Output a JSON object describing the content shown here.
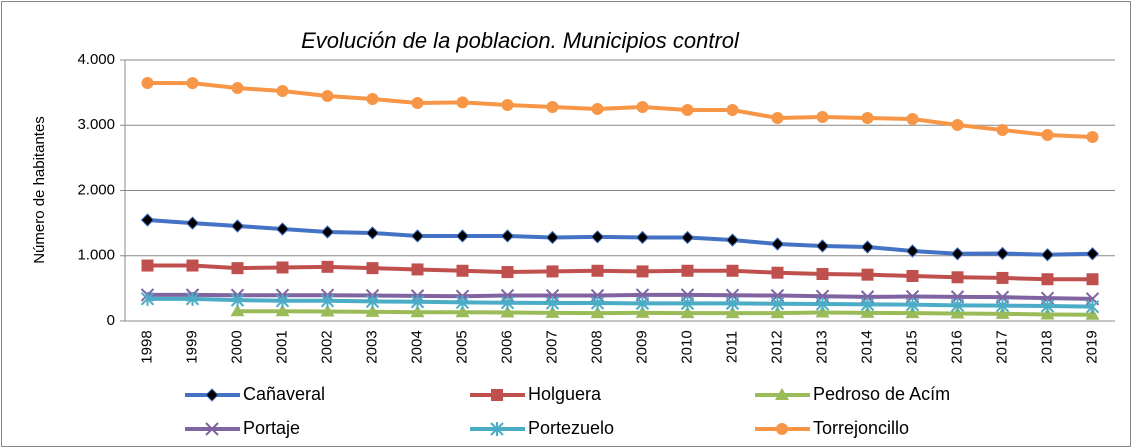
{
  "chart_data": {
    "type": "line",
    "title": "Evolución de la poblacion. Municipios control",
    "y_label": "Número de habitantes",
    "categories": [
      "1998",
      "1999",
      "2000",
      "2001",
      "2002",
      "2003",
      "2004",
      "2005",
      "2006",
      "2007",
      "2008",
      "2009",
      "2010",
      "2011",
      "2012",
      "2013",
      "2014",
      "2015",
      "2016",
      "2017",
      "2018",
      "2019"
    ],
    "ylim": [
      0,
      4000
    ],
    "yticks": [
      0,
      {
        "value": 1000,
        "label": "1.000"
      },
      {
        "value": 2000,
        "label": "2.000"
      },
      {
        "value": 3000,
        "label": "3.000"
      },
      {
        "value": 4000,
        "label": "4.000"
      }
    ],
    "grid": true,
    "series": [
      {
        "name": "Cañaveral",
        "color": "#4472c4",
        "marker": "diamond",
        "values": [
          1548,
          1500,
          1456,
          1410,
          1364,
          1349,
          1303,
          1303,
          1303,
          1280,
          1290,
          1280,
          1280,
          1241,
          1180,
          1150,
          1134,
          1073,
          1030,
          1035,
          1015,
          1030
        ]
      },
      {
        "name": "Holguera",
        "color": "#c0504d",
        "marker": "square",
        "values": [
          850,
          850,
          810,
          820,
          830,
          810,
          790,
          770,
          750,
          760,
          770,
          760,
          770,
          770,
          740,
          720,
          710,
          690,
          670,
          660,
          640,
          640
        ]
      },
      {
        "name": "Pedroso de Acím",
        "color": "#9bbb59",
        "marker": "triangle",
        "values": [
          null,
          null,
          150,
          150,
          145,
          140,
          135,
          135,
          130,
          125,
          120,
          125,
          120,
          120,
          120,
          130,
          125,
          120,
          115,
          110,
          100,
          95
        ]
      },
      {
        "name": "Portaje",
        "color": "#8064a2",
        "marker": "x",
        "values": [
          400,
          400,
          395,
          395,
          395,
          390,
          385,
          380,
          390,
          390,
          390,
          400,
          400,
          395,
          390,
          380,
          370,
          375,
          370,
          365,
          350,
          340
        ]
      },
      {
        "name": "Portezuelo",
        "color": "#4bacc6",
        "marker": "star",
        "values": [
          340,
          340,
          320,
          310,
          310,
          300,
          295,
          285,
          280,
          275,
          275,
          270,
          270,
          270,
          265,
          260,
          255,
          250,
          240,
          235,
          230,
          220
        ]
      },
      {
        "name": "Torrejoncillo",
        "color": "#f79646",
        "marker": "circle",
        "values": [
          3647,
          3645,
          3570,
          3525,
          3448,
          3402,
          3341,
          3350,
          3310,
          3280,
          3250,
          3280,
          3234,
          3234,
          3111,
          3126,
          3111,
          3096,
          3004,
          2927,
          2850,
          2820
        ]
      }
    ]
  }
}
